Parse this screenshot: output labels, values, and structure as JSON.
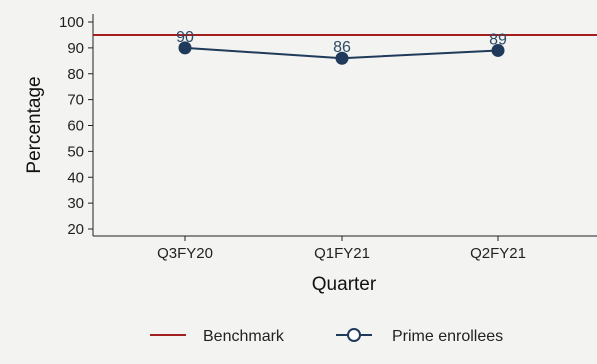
{
  "chart_data": {
    "type": "line",
    "categories": [
      "Q3FY20",
      "Q1FY21",
      "Q2FY21"
    ],
    "series": [
      {
        "name": "Prime enrollees",
        "values": [
          90,
          86,
          89
        ],
        "color": "#1f3a5a",
        "marker": "circle"
      }
    ],
    "benchmark": {
      "name": "Benchmark",
      "value": 95,
      "color": "#a31f1f"
    },
    "data_labels": [
      "90",
      "86",
      "89"
    ],
    "xlabel": "Quarter",
    "ylabel": "Percentage",
    "ylim": [
      18,
      103
    ],
    "yticks": [
      20,
      30,
      40,
      50,
      60,
      70,
      80,
      90,
      100
    ],
    "grid": false,
    "legend": {
      "position": "bottom",
      "items": [
        "Benchmark",
        "Prime enrollees"
      ]
    },
    "background": "#f3f3f1"
  }
}
